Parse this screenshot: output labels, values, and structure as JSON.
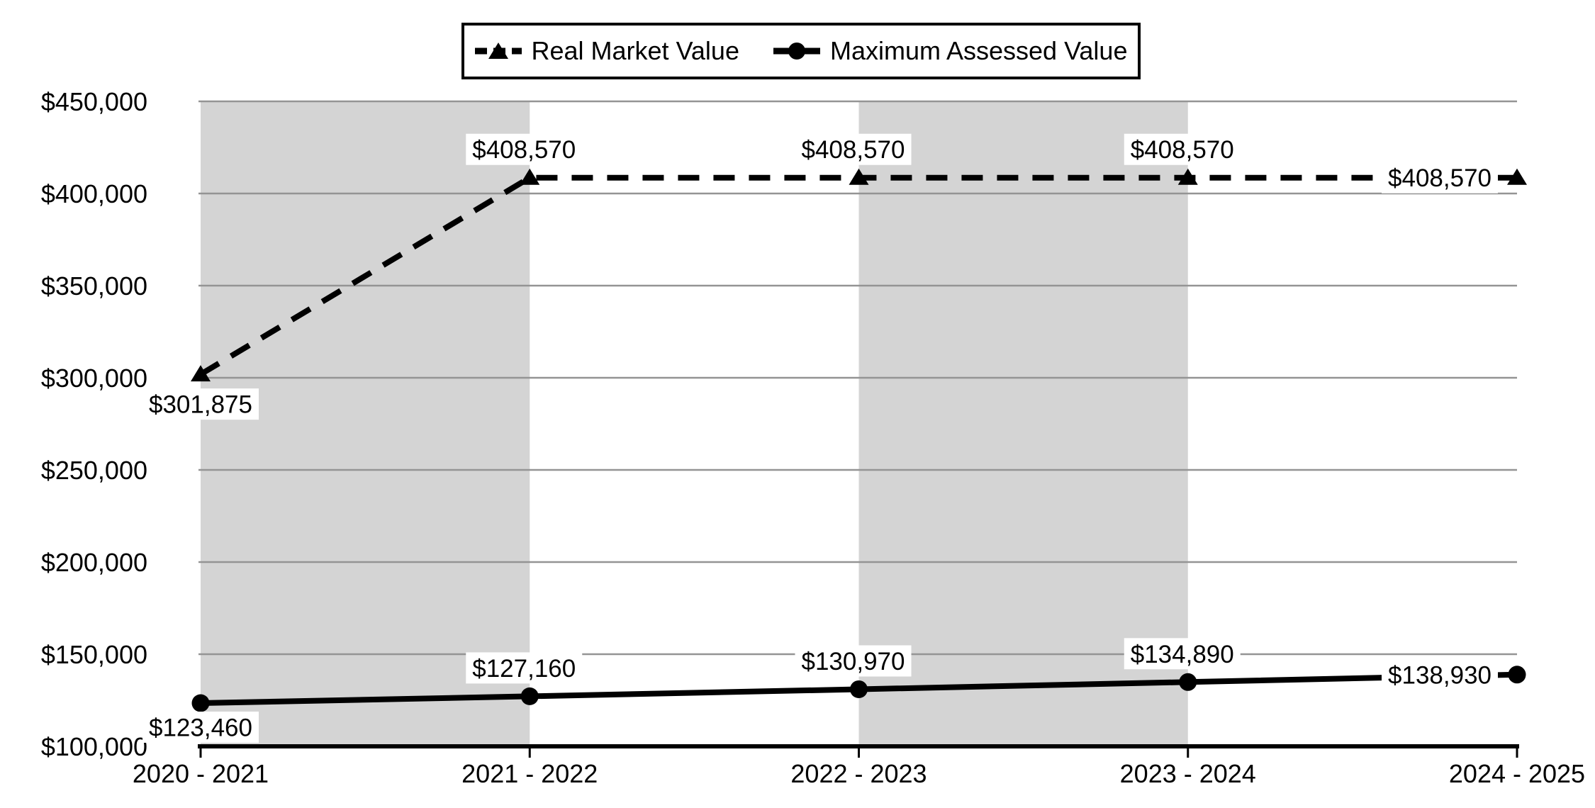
{
  "chart_data": {
    "type": "line",
    "categories": [
      "2020 - 2021",
      "2021 - 2022",
      "2022 - 2023",
      "2023 - 2024",
      "2024 - 2025"
    ],
    "series": [
      {
        "name": "Real Market Value",
        "values": [
          301875,
          408570,
          408570,
          408570,
          408570
        ],
        "labels": [
          "$301,875",
          "$408,570",
          "$408,570",
          "$408,570",
          "$408,570"
        ],
        "line_style": "dashed",
        "marker": "triangle",
        "color": "#000000"
      },
      {
        "name": "Maximum Assessed Value",
        "values": [
          123460,
          127160,
          130970,
          134890,
          138930
        ],
        "labels": [
          "$123,460",
          "$127,160",
          "$130,970",
          "$134,890",
          "$138,930"
        ],
        "line_style": "solid",
        "marker": "circle",
        "color": "#000000"
      }
    ],
    "xlabel": "",
    "ylabel": "",
    "ylim": [
      100000,
      450000
    ],
    "y_axis": {
      "step": 50000,
      "tick_labels": [
        "$100,000",
        "$150,000",
        "$200,000",
        "$250,000",
        "$300,000",
        "$350,000",
        "$400,000",
        "$450,000"
      ]
    },
    "grid": true,
    "legend_position": "top-center",
    "plot_bands": [
      [
        0,
        1
      ],
      [
        2,
        3
      ]
    ],
    "colors": {
      "band": "#d4d4d4",
      "gridline": "#949494",
      "axis": "#000000",
      "label_background": "#ffffff",
      "legend_border": "#000000"
    }
  }
}
